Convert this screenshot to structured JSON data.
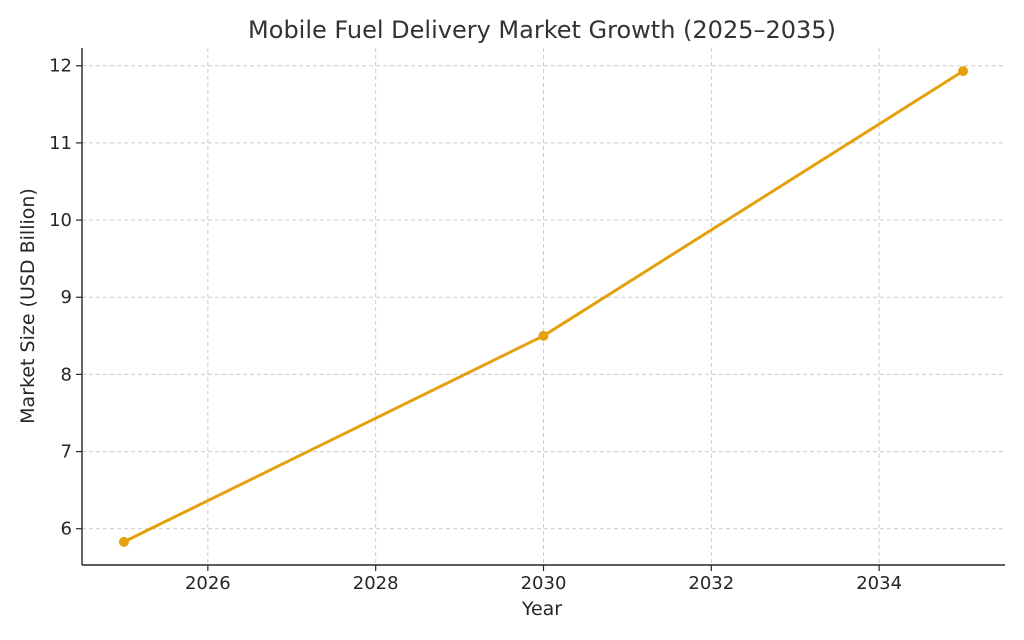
{
  "chart_data": {
    "type": "line",
    "title": "Mobile Fuel Delivery Market Growth (2025–2035)",
    "xlabel": "Year",
    "ylabel": "Market Size (USD Billion)",
    "x": [
      2025,
      2030,
      2035
    ],
    "series": [
      {
        "values": [
          5.83,
          8.5,
          11.93
        ]
      }
    ],
    "xticks": [
      2026,
      2028,
      2030,
      2032,
      2034
    ],
    "yticks": [
      6,
      7,
      8,
      9,
      10,
      11,
      12
    ],
    "xlim": [
      2024.5,
      2035.5
    ],
    "ylim": [
      5.53,
      12.23
    ],
    "grid": true,
    "line_color": "#E5A00D"
  }
}
